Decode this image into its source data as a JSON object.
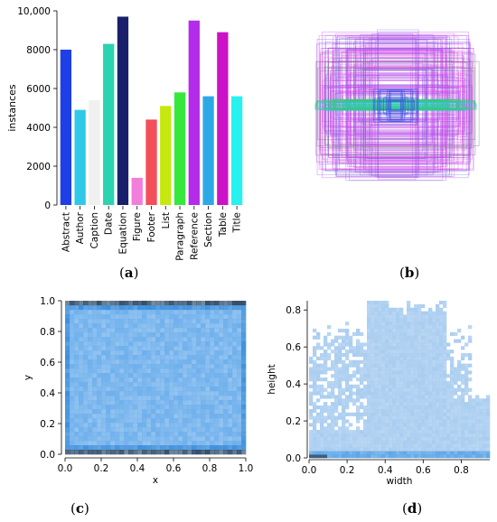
{
  "chart_data": [
    {
      "type": "bar",
      "panel_label": "a",
      "ylabel": "instances",
      "ylim": [
        0,
        10000
      ],
      "yticks": [
        0,
        2000,
        4000,
        6000,
        8000,
        10000
      ],
      "ytick_labels": [
        "0",
        "2000",
        "4000",
        "6000",
        "8000",
        "10,000"
      ],
      "categories": [
        "Abstract",
        "Author",
        "Caption",
        "Date",
        "Equation",
        "Figure",
        "Footer",
        "List",
        "Paragraph",
        "Reference",
        "Section",
        "Table",
        "Title"
      ],
      "values": [
        8000,
        4900,
        5400,
        8300,
        9700,
        1400,
        4400,
        5100,
        5800,
        9500,
        5600,
        8900,
        5600
      ],
      "colors": [
        "#1f3fe6",
        "#2ec9e8",
        "#f0f0f0",
        "#2bd3b0",
        "#1a1f6b",
        "#f27ddb",
        "#f24f5a",
        "#c6e80e",
        "#37e83c",
        "#b52bea",
        "#2ca8e6",
        "#cc12c7",
        "#27f2ef"
      ]
    },
    {
      "type": "other",
      "panel_label": "b",
      "colors": [
        "#b43fe8",
        "#e23ae8",
        "#7a5ce0",
        "#888888",
        "#2ec9c9",
        "#37c878"
      ]
    },
    {
      "type": "heatmap",
      "panel_label": "c",
      "xlabel": "x",
      "ylabel": "y",
      "xlim": [
        0,
        1
      ],
      "ylim": [
        0,
        1
      ],
      "xticks": [
        "0.0",
        "0.2",
        "0.4",
        "0.6",
        "0.8",
        "1.0"
      ],
      "yticks": [
        "0.0",
        "0.2",
        "0.4",
        "0.6",
        "0.8",
        "1.0"
      ],
      "colors": [
        "#6fb0ec",
        "#3d8fdc",
        "#1f3c5a"
      ]
    },
    {
      "type": "heatmap",
      "panel_label": "d",
      "xlabel": "width",
      "ylabel": "height",
      "xlim": [
        0,
        0.95
      ],
      "ylim": [
        0,
        0.85
      ],
      "xticks": [
        "0.0",
        "0.2",
        "0.4",
        "0.6",
        "0.8"
      ],
      "yticks": [
        "0.0",
        "0.2",
        "0.4",
        "0.6",
        "0.8"
      ],
      "colors": [
        "#a9cdf0",
        "#5ea6e6",
        "#2a4f70"
      ]
    }
  ]
}
